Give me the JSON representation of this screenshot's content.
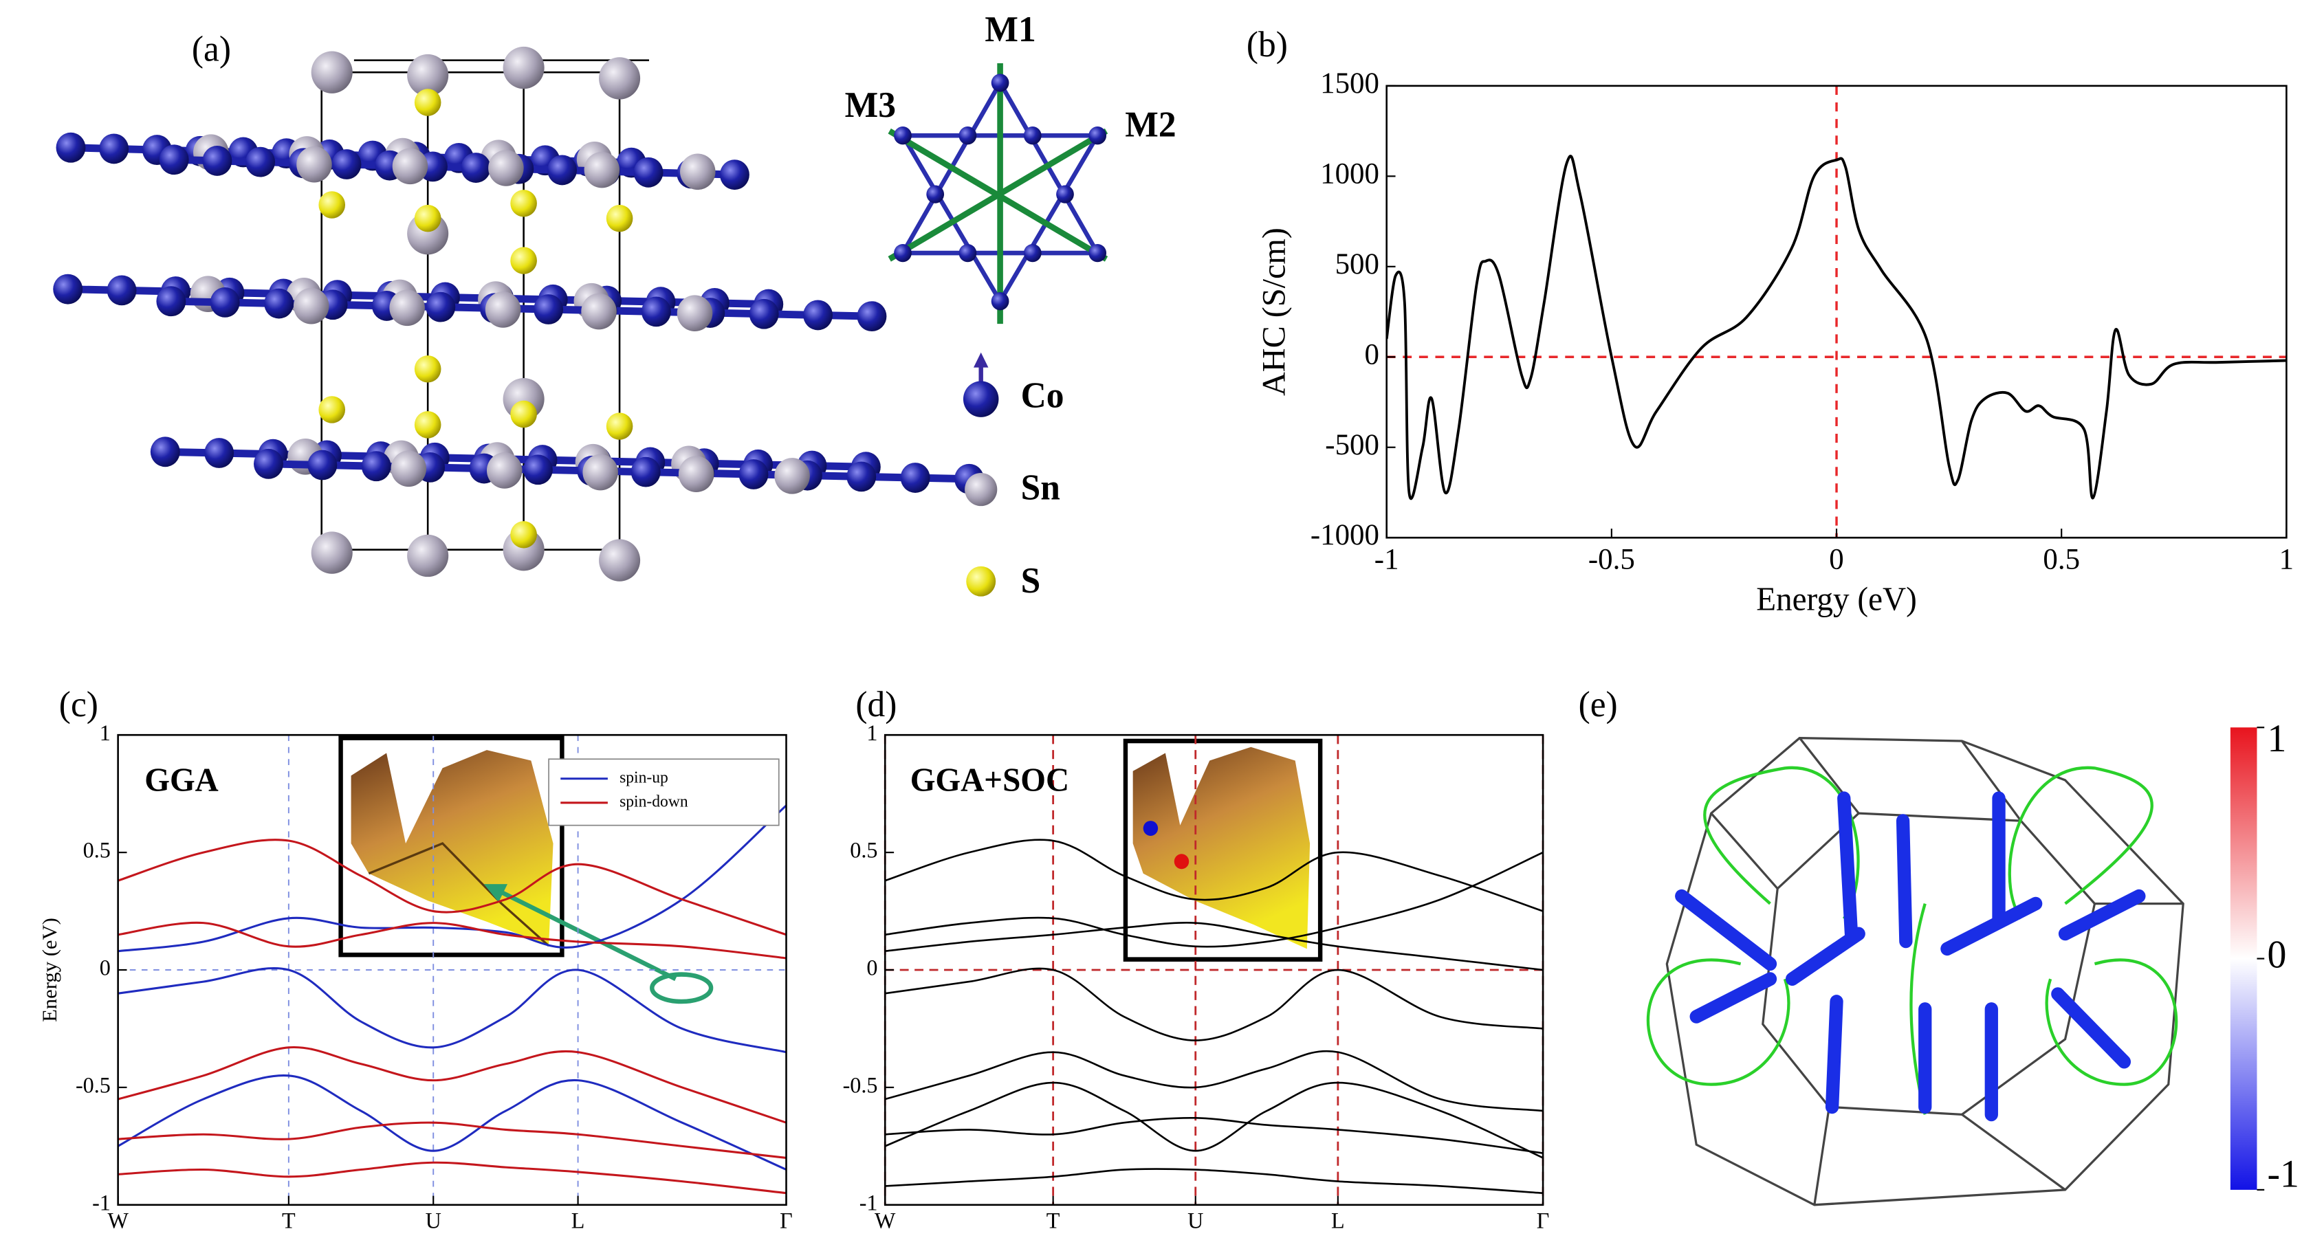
{
  "chart_data": [
    {
      "type": "line",
      "label": "(b)",
      "xlabel": "Energy (eV)",
      "ylabel": "AHC (S/cm)",
      "xlim": [
        -1,
        1
      ],
      "xticks": [
        -1,
        -0.5,
        0,
        0.5,
        1
      ],
      "ylim": [
        -1000,
        1500
      ],
      "yticks": [
        -1000,
        -500,
        0,
        500,
        1000,
        1500
      ],
      "zero_lines": [
        "x",
        "y"
      ],
      "ref_color": "#e8282b",
      "x": [
        -1.0,
        -0.98,
        -0.96,
        -0.95,
        -0.92,
        -0.9,
        -0.87,
        -0.84,
        -0.8,
        -0.78,
        -0.75,
        -0.7,
        -0.68,
        -0.65,
        -0.6,
        -0.57,
        -0.5,
        -0.45,
        -0.4,
        -0.3,
        -0.2,
        -0.1,
        -0.05,
        0.0,
        0.02,
        0.05,
        0.1,
        0.2,
        0.25,
        0.27,
        0.3,
        0.33,
        0.38,
        0.42,
        0.45,
        0.48,
        0.55,
        0.57,
        0.6,
        0.62,
        0.65,
        0.7,
        0.75,
        0.85,
        1.0
      ],
      "series": [
        {
          "color": "#000000",
          "values": [
            100,
            450,
            300,
            -750,
            -500,
            -230,
            -750,
            -400,
            400,
            530,
            450,
            -100,
            -120,
            300,
            1070,
            900,
            0,
            -490,
            -300,
            50,
            220,
            600,
            1000,
            1090,
            1050,
            700,
            480,
            100,
            -600,
            -680,
            -350,
            -230,
            -200,
            -300,
            -270,
            -330,
            -400,
            -780,
            -300,
            150,
            -100,
            -150,
            -40,
            -30,
            -20
          ]
        }
      ]
    },
    {
      "type": "line",
      "label": "(c)",
      "ylabel": "Energy (eV)",
      "annotation": "GGA",
      "xlim": [
        0,
        4.62
      ],
      "xticks": [
        {
          "value": 0,
          "label": "W"
        },
        {
          "value": 1.18,
          "label": "T"
        },
        {
          "value": 2.18,
          "label": "U"
        },
        {
          "value": 3.18,
          "label": "L"
        },
        {
          "value": 4.62,
          "label": "Γ"
        }
      ],
      "ylim": [
        -1,
        1
      ],
      "yticks": [
        -1,
        -0.5,
        0,
        0.5,
        1
      ],
      "zero_lines": [
        "y"
      ],
      "kpoint_lines": true,
      "ref_color": "#7f8fe0",
      "legend": "upper right",
      "x": [
        0,
        0.59,
        1.18,
        1.68,
        2.18,
        2.68,
        3.18,
        3.9,
        4.62
      ],
      "series": [
        {
          "name": "spin-up",
          "color": "#1f2bbf",
          "values": [
            -0.1,
            -0.05,
            0.0,
            -0.22,
            -0.33,
            -0.2,
            0.0,
            -0.25,
            -0.35
          ]
        },
        {
          "color": "#1f2bbf",
          "values": [
            0.08,
            0.12,
            0.22,
            0.18,
            0.18,
            0.16,
            0.1,
            0.3,
            0.7
          ]
        },
        {
          "color": "#1f2bbf",
          "values": [
            -0.75,
            -0.55,
            -0.45,
            -0.6,
            -0.77,
            -0.6,
            -0.47,
            -0.65,
            -0.85
          ]
        },
        {
          "name": "spin-down",
          "color": "#c4161c",
          "values": [
            0.38,
            0.5,
            0.55,
            0.4,
            0.25,
            0.3,
            0.45,
            0.3,
            0.15
          ]
        },
        {
          "color": "#c4161c",
          "values": [
            0.15,
            0.2,
            0.1,
            0.15,
            0.2,
            0.15,
            0.12,
            0.1,
            0.05
          ]
        },
        {
          "color": "#c4161c",
          "values": [
            -0.55,
            -0.45,
            -0.33,
            -0.4,
            -0.47,
            -0.4,
            -0.35,
            -0.5,
            -0.65
          ]
        },
        {
          "color": "#c4161c",
          "values": [
            -0.72,
            -0.7,
            -0.72,
            -0.67,
            -0.65,
            -0.68,
            -0.7,
            -0.75,
            -0.8
          ]
        },
        {
          "color": "#c4161c",
          "values": [
            -0.87,
            -0.85,
            -0.88,
            -0.85,
            -0.82,
            -0.84,
            -0.86,
            -0.9,
            -0.95
          ]
        }
      ]
    },
    {
      "type": "line",
      "label": "(d)",
      "annotation": "GGA+SOC",
      "xlim": [
        0,
        4.62
      ],
      "xticks": [
        {
          "value": 0,
          "label": "W"
        },
        {
          "value": 1.18,
          "label": "T"
        },
        {
          "value": 2.18,
          "label": "U"
        },
        {
          "value": 3.18,
          "label": "L"
        },
        {
          "value": 4.62,
          "label": "Γ"
        }
      ],
      "ylim": [
        -1,
        1
      ],
      "yticks": [
        -1,
        -0.5,
        0,
        0.5,
        1
      ],
      "zero_lines": [
        "y"
      ],
      "kpoint_lines": true,
      "ref_color": "#c0282b",
      "x": [
        0,
        0.59,
        1.18,
        1.68,
        2.18,
        2.68,
        3.18,
        3.9,
        4.62
      ],
      "series": [
        {
          "color": "#000000",
          "values": [
            -0.1,
            -0.05,
            0.0,
            -0.2,
            -0.3,
            -0.2,
            0.0,
            -0.2,
            -0.25
          ]
        },
        {
          "color": "#000000",
          "values": [
            0.08,
            0.12,
            0.15,
            0.18,
            0.2,
            0.15,
            0.1,
            0.05,
            0.0
          ]
        },
        {
          "color": "#000000",
          "values": [
            0.15,
            0.2,
            0.22,
            0.15,
            0.1,
            0.12,
            0.18,
            0.3,
            0.5
          ]
        },
        {
          "color": "#000000",
          "values": [
            0.38,
            0.5,
            0.55,
            0.4,
            0.3,
            0.35,
            0.5,
            0.4,
            0.25
          ]
        },
        {
          "color": "#000000",
          "values": [
            -0.55,
            -0.45,
            -0.35,
            -0.45,
            -0.5,
            -0.42,
            -0.35,
            -0.55,
            -0.6
          ]
        },
        {
          "color": "#000000",
          "values": [
            -0.7,
            -0.68,
            -0.7,
            -0.65,
            -0.63,
            -0.66,
            -0.68,
            -0.72,
            -0.78
          ]
        },
        {
          "color": "#000000",
          "values": [
            -0.75,
            -0.6,
            -0.48,
            -0.6,
            -0.77,
            -0.6,
            -0.48,
            -0.6,
            -0.8
          ]
        },
        {
          "color": "#000000",
          "values": [
            -0.92,
            -0.9,
            -0.88,
            -0.85,
            -0.85,
            -0.87,
            -0.9,
            -0.92,
            -0.95
          ]
        }
      ]
    }
  ],
  "panel_a": {
    "label": "(a)",
    "directions": [
      "M1",
      "M2",
      "M3"
    ],
    "legend": [
      "Co",
      "Sn",
      "S"
    ]
  },
  "panel_e": {
    "label": "(e)",
    "clim": [
      -1,
      1
    ],
    "cticks": [
      1,
      0,
      -1
    ]
  }
}
